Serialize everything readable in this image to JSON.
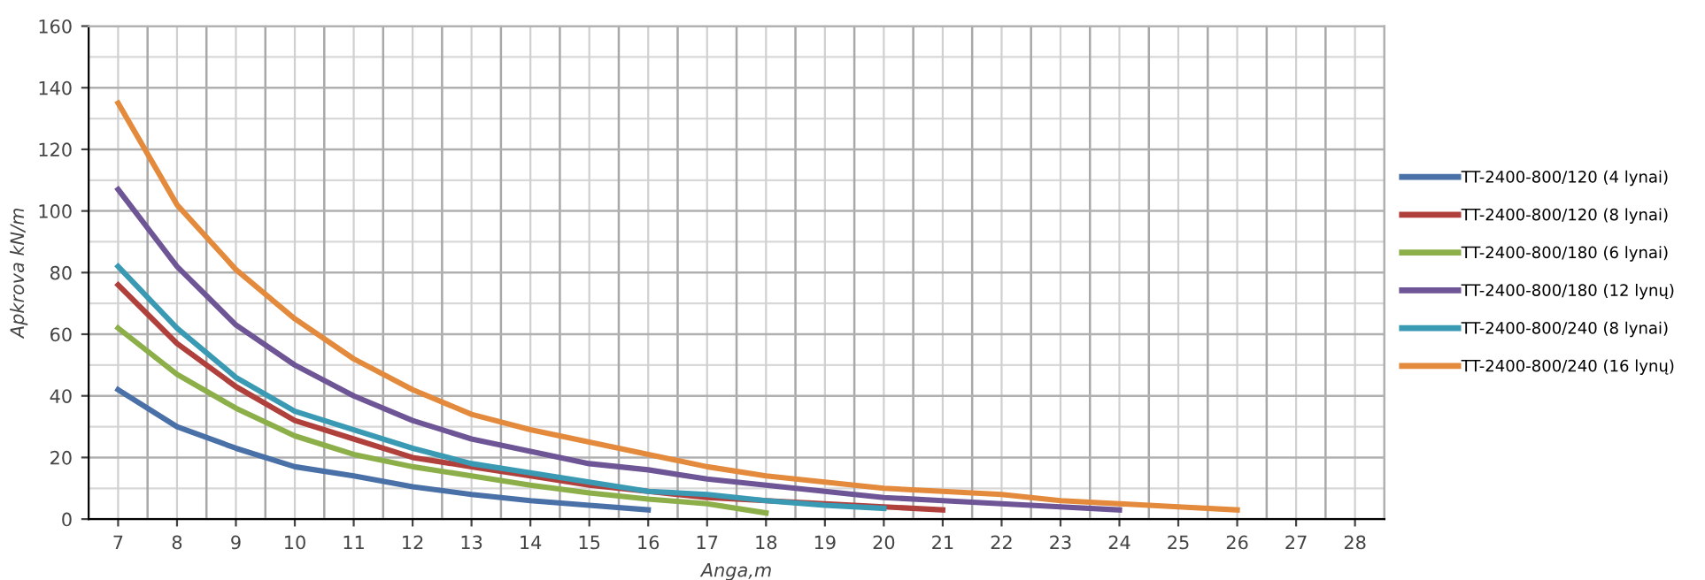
{
  "chart_data": {
    "type": "line",
    "xlabel": "Anga,m",
    "ylabel": "Apkrova kN/m",
    "categories": [
      "7",
      "8",
      "9",
      "10",
      "11",
      "12",
      "13",
      "14",
      "15",
      "16",
      "17",
      "18",
      "19",
      "20",
      "21",
      "22",
      "23",
      "24",
      "25",
      "26",
      "27",
      "28"
    ],
    "ylim": [
      0,
      160
    ],
    "yticks": [
      0,
      20,
      40,
      60,
      80,
      100,
      120,
      140,
      160
    ],
    "grid": true,
    "legend": "right",
    "marker": "none",
    "line_style": "solid",
    "series": [
      {
        "name": "TT-2400-800/120 (4 lynai)",
        "color": "#4a70a8",
        "values": [
          42,
          30,
          23,
          17,
          14,
          10.5,
          8,
          6,
          4.5,
          3,
          null,
          null,
          null,
          null,
          null,
          null,
          null,
          null,
          null,
          null,
          null,
          null
        ]
      },
      {
        "name": "TT-2400-800/120 (8 lynai)",
        "color": "#b0403c",
        "values": [
          76,
          57,
          43,
          32,
          26,
          20,
          17,
          14,
          11,
          9,
          7,
          6,
          5,
          4,
          3,
          null,
          null,
          null,
          null,
          null,
          null,
          null
        ]
      },
      {
        "name": "TT-2400-800/180 (6 lynai)",
        "color": "#8caf4a",
        "values": [
          62,
          47,
          36,
          27,
          21,
          17,
          14,
          11,
          8.5,
          6.5,
          5,
          2,
          null,
          null,
          null,
          null,
          null,
          null,
          null,
          null,
          null,
          null
        ]
      },
      {
        "name": "TT-2400-800/180 (12 lynų)",
        "color": "#6e5596",
        "values": [
          107,
          82,
          63,
          50,
          40,
          32,
          26,
          22,
          18,
          16,
          13,
          11,
          9,
          7,
          6,
          5,
          4,
          3,
          null,
          null,
          null,
          null
        ]
      },
      {
        "name": "TT-2400-800/240 (8 lynai)",
        "color": "#3a9ab4",
        "values": [
          82,
          62,
          46,
          35,
          29,
          23,
          18,
          15,
          12,
          9,
          8,
          6,
          4.5,
          3.5,
          null,
          null,
          null,
          null,
          null,
          null,
          null,
          null
        ]
      },
      {
        "name": "TT-2400-800/240 (16 lynų)",
        "color": "#e38a3c",
        "values": [
          135,
          102,
          81,
          65,
          52,
          42,
          34,
          29,
          25,
          21,
          17,
          14,
          12,
          10,
          9,
          8,
          6,
          5,
          4,
          3,
          null,
          null
        ]
      }
    ]
  }
}
